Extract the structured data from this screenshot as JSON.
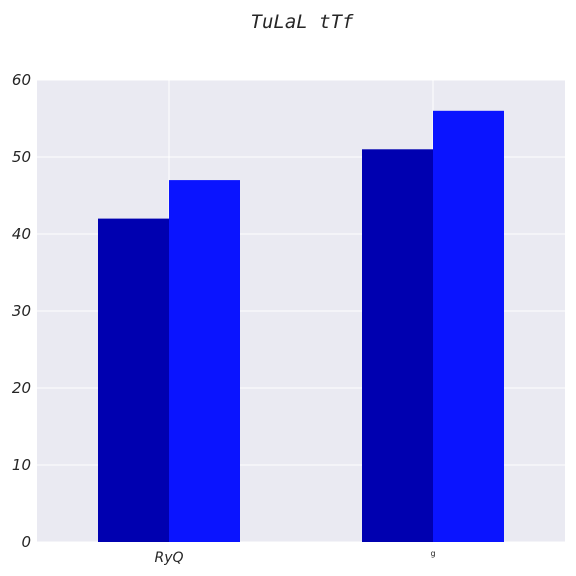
{
  "chart_data": {
    "type": "bar",
    "title": "TuLaL tTf",
    "categories": [
      "RyQ",
      "g"
    ],
    "series": [
      {
        "values": [
          42,
          51
        ],
        "color": "#0000b0"
      },
      {
        "values": [
          47,
          56
        ],
        "color": "#0a14ff"
      }
    ],
    "xlabel": "",
    "ylabel": "",
    "ylim": [
      0,
      60
    ],
    "yticks": [
      0,
      10,
      20,
      30,
      40,
      50,
      60
    ],
    "grid": true,
    "legend": "none"
  },
  "colors": {
    "plot_background": "#eaeaf2",
    "grid": "#ffffff",
    "text": "#262626"
  }
}
